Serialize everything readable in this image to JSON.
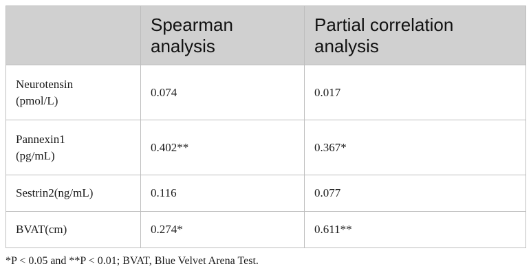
{
  "table": {
    "headers": [
      "",
      "Spearman analysis",
      "Partial correlation analysis"
    ],
    "header_lines": [
      [],
      [
        "Spearman",
        "analysis"
      ],
      [
        "Partial correlation",
        "analysis"
      ]
    ],
    "rows": [
      {
        "label_lines": [
          "Neurotensin",
          "(pmol/L)"
        ],
        "spearman": "0.074",
        "partial": "0.017"
      },
      {
        "label_lines": [
          "Pannexin1",
          "(pg/mL)"
        ],
        "spearman": "0.402**",
        "partial": "0.367*"
      },
      {
        "label_lines": [
          "Sestrin2(ng/mL)"
        ],
        "spearman": "0.116",
        "partial": "0.077"
      },
      {
        "label_lines": [
          "BVAT(cm)"
        ],
        "spearman": "0.274*",
        "partial": "0.611**"
      }
    ]
  },
  "footnote": "*P < 0.05 and **P < 0.01; BVAT, Blue Velvet Arena Test."
}
